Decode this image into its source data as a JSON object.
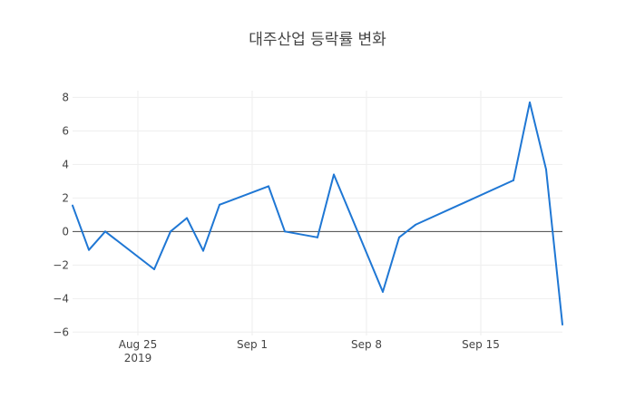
{
  "chart_data": {
    "type": "line",
    "title": "대주산업 등락률 변화",
    "xlabel": "",
    "ylabel": "",
    "x_type": "date",
    "x_range": [
      "2019-08-21",
      "2019-09-20"
    ],
    "ylim": [
      -6.2,
      8.4
    ],
    "grid": true,
    "zero_line": true,
    "x_ticks": [
      {
        "date": "2019-08-25",
        "label": "Aug 25",
        "sublabel": "2019"
      },
      {
        "date": "2019-09-01",
        "label": "Sep 1",
        "sublabel": ""
      },
      {
        "date": "2019-09-08",
        "label": "Sep 8",
        "sublabel": ""
      },
      {
        "date": "2019-09-15",
        "label": "Sep 15",
        "sublabel": ""
      }
    ],
    "y_ticks": [
      {
        "value": 8,
        "label": "8"
      },
      {
        "value": 6,
        "label": "6"
      },
      {
        "value": 4,
        "label": "4"
      },
      {
        "value": 2,
        "label": "2"
      },
      {
        "value": 0,
        "label": "0"
      },
      {
        "value": -2,
        "label": "−2"
      },
      {
        "value": -4,
        "label": "−4"
      },
      {
        "value": -6,
        "label": "−6"
      }
    ],
    "series": [
      {
        "color": "#1f77d4",
        "points": [
          {
            "x": "2019-08-21",
            "y": 1.55
          },
          {
            "x": "2019-08-22",
            "y": -1.1
          },
          {
            "x": "2019-08-23",
            "y": 0.0
          },
          {
            "x": "2019-08-26",
            "y": -2.25
          },
          {
            "x": "2019-08-27",
            "y": 0.0
          },
          {
            "x": "2019-08-28",
            "y": 0.8
          },
          {
            "x": "2019-08-29",
            "y": -1.15
          },
          {
            "x": "2019-08-30",
            "y": 1.6
          },
          {
            "x": "2019-09-02",
            "y": 2.7
          },
          {
            "x": "2019-09-03",
            "y": 0.0
          },
          {
            "x": "2019-09-05",
            "y": -0.35
          },
          {
            "x": "2019-09-06",
            "y": 3.4
          },
          {
            "x": "2019-09-09",
            "y": -3.6
          },
          {
            "x": "2019-09-10",
            "y": -0.35
          },
          {
            "x": "2019-09-11",
            "y": 0.4
          },
          {
            "x": "2019-09-17",
            "y": 3.05
          },
          {
            "x": "2019-09-18",
            "y": 7.7
          },
          {
            "x": "2019-09-19",
            "y": 3.7
          },
          {
            "x": "2019-09-20",
            "y": -5.55
          }
        ]
      }
    ]
  }
}
